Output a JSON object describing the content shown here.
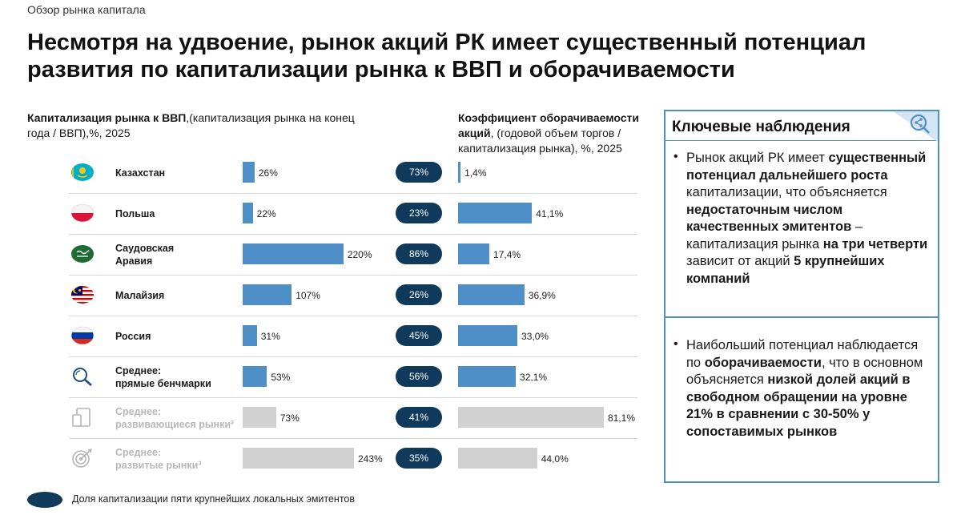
{
  "page": {
    "overline": "Обзор рынка капитала",
    "headline": "Несмотря на удвоение, рынок акций РК имеет существенный потенциал развития по капитализации рынка к ВВП и оборачиваемости"
  },
  "left_header": {
    "title": "Капитализация рынка к ВВП",
    "subtitle": ",(капитализация рынка на конец года / ВВП),%, 2025"
  },
  "right_header": {
    "title": "Коэффициент оборачиваемости акций",
    "subtitle": ", (годовой объем торгов / капитализация рынка), %, 2025"
  },
  "groups": [
    {
      "label": "1",
      "color": "#4e8fc7"
    },
    {
      "label": "2",
      "color": "#a8a8a8"
    }
  ],
  "chart_data": [
    {
      "type": "bar",
      "title": "Капитализация рынка к ВВП",
      "categories": [
        "Казахстан",
        "Польша",
        "Саудовская Аравия",
        "Малайзия",
        "Россия",
        "Среднее: прямые бенчмарки",
        "Среднее: развивающиеся рынки²",
        "Среднее: развитые рынки³"
      ],
      "series": [
        {
          "values": [
            26,
            22,
            220,
            107,
            31,
            53,
            73,
            243
          ]
        }
      ],
      "labels": [
        "26%",
        "22%",
        "220%",
        "107%",
        "31%",
        "53%",
        "73%",
        "243%"
      ],
      "xlim": [
        0,
        243
      ]
    },
    {
      "type": "bar",
      "title": "Коэффициент оборачиваемости акций",
      "categories": [
        "Казахстан",
        "Польша",
        "Саудовская Аравия",
        "Малайзия",
        "Россия",
        "Среднее: прямые бенчмарки",
        "Среднее: развивающиеся рынки²",
        "Среднее: развитые рынки³"
      ],
      "series": [
        {
          "values": [
            1.4,
            41.1,
            17.4,
            36.9,
            33.0,
            32.1,
            81.1,
            44.0
          ]
        }
      ],
      "labels": [
        "1,4%",
        "41,1%",
        "17,4%",
        "36,9%",
        "33,0%",
        "32,1%",
        "81,1%",
        "44,0%"
      ],
      "xlim": [
        0,
        81.1
      ]
    },
    {
      "type": "table",
      "title": "Доля капитализации пяти крупнейших локальных эмитентов",
      "categories": [
        "Казахстан",
        "Польша",
        "Саудовская Аравия",
        "Малайзия",
        "Россия",
        "Среднее: прямые бенчмарки",
        "Среднее: развивающиеся рынки²",
        "Среднее: развитые рынки³"
      ],
      "values": [
        73,
        23,
        86,
        26,
        45,
        56,
        41,
        35
      ],
      "labels": [
        "73%",
        "23%",
        "86%",
        "26%",
        "45%",
        "56%",
        "41%",
        "35%"
      ]
    }
  ],
  "rows": [
    {
      "line1": "Казахстан",
      "line2": "",
      "flag": "kazakhstan-flag",
      "group": 1
    },
    {
      "line1": "Польша",
      "line2": "",
      "flag": "poland-flag",
      "group": 1
    },
    {
      "line1": "Саудовская",
      "line2": "Аравия",
      "flag": "saudi-arabia-flag",
      "group": 1
    },
    {
      "line1": "Малайзия",
      "line2": "",
      "flag": "malaysia-flag",
      "group": 1
    },
    {
      "line1": "Россия",
      "line2": "",
      "flag": "russia-flag",
      "group": 1
    },
    {
      "line1": "Среднее:",
      "line2": "прямые бенчмарки",
      "flag": "magnifier-icon",
      "group": 1
    },
    {
      "line1": "Среднее:",
      "line2": "развивающиеся рынки²",
      "flag": "devices-icon",
      "group": 2
    },
    {
      "line1": "Среднее:",
      "line2": "развитые рынки³",
      "flag": "target-icon",
      "group": 2
    }
  ],
  "observations": {
    "title": "Ключевые наблюдения",
    "bullet1": [
      {
        "t": "Рынок акций РК имеет ",
        "b": false
      },
      {
        "t": "существенный потенциал дальнейшего роста",
        "b": true
      },
      {
        "t": " капитализации, что объясняется ",
        "b": false
      },
      {
        "t": "недостаточным числом качественных эмитентов",
        "b": true
      },
      {
        "t": " – капитализация рынка ",
        "b": false
      },
      {
        "t": "на три четверти",
        "b": true
      },
      {
        "t": " зависит от акций ",
        "b": false
      },
      {
        "t": "5 крупнейших компаний",
        "b": true
      }
    ],
    "bullet2": [
      {
        "t": "Наибольший потенциал наблюдается по ",
        "b": false
      },
      {
        "t": "оборачиваемости",
        "b": true
      },
      {
        "t": ", что в основном объясняется ",
        "b": false
      },
      {
        "t": "низкой долей акций в свободном обращении на уровне 21% в сравнении с 30-50% у сопоставимых рынков",
        "b": true
      }
    ]
  },
  "legend": {
    "text": "Доля капитализации пяти крупнейших локальных эмитентов"
  }
}
